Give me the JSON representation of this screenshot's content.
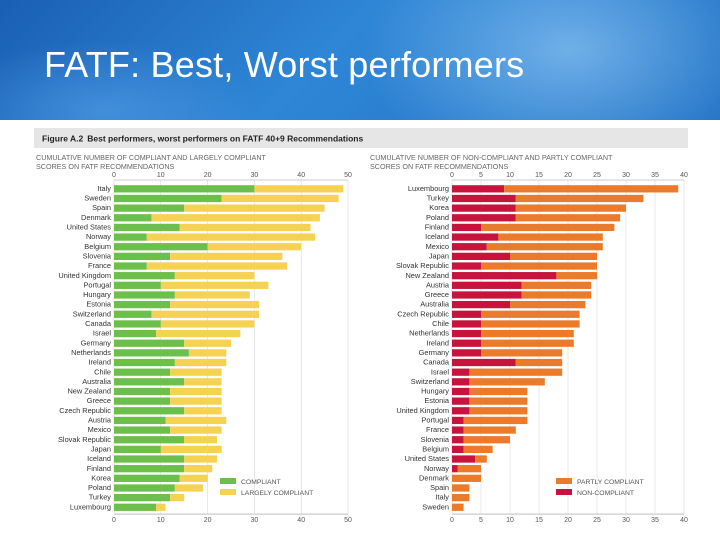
{
  "slide": {
    "title": "FATF: Best, Worst performers"
  },
  "colors": {
    "green": "#6cbf4a",
    "yellow": "#f6d253",
    "red": "#c8143c",
    "orange": "#ec7a2b",
    "header_bg": "#e6e6e6"
  },
  "chart_data": [
    {
      "type": "bar",
      "stacked": true,
      "orientation": "horizontal",
      "figure_title": "Figure A.2",
      "figure_subtitle": "Best performers, worst performers on FATF 40+9 Recommendations",
      "title": "CUMULATIVE NUMBER OF COMPLIANT AND LARGELY COMPLIANT SCORES ON FATF RECOMMENDATIONS",
      "xlim": [
        0,
        50
      ],
      "ticks": [
        0,
        10,
        20,
        30,
        40,
        50
      ],
      "categories": [
        "Italy",
        "Sweden",
        "Spain",
        "Denmark",
        "United States",
        "Norway",
        "Belgium",
        "Slovenia",
        "France",
        "United Kingdom",
        "Portugal",
        "Hungary",
        "Estonia",
        "Switzerland",
        "Canada",
        "Israel",
        "Germany",
        "Netherlands",
        "Ireland",
        "Chile",
        "Australia",
        "New Zealand",
        "Greece",
        "Czech Republic",
        "Austria",
        "Mexico",
        "Slovak Republic",
        "Japan",
        "Iceland",
        "Finland",
        "Korea",
        "Poland",
        "Turkey",
        "Luxembourg"
      ],
      "series": [
        {
          "name": "COMPLIANT",
          "values": [
            30,
            23,
            15,
            8,
            14,
            7,
            20,
            12,
            7,
            13,
            10,
            13,
            12,
            8,
            10,
            9,
            15,
            16,
            13,
            12,
            15,
            12,
            12,
            15,
            11,
            12,
            15,
            10,
            15,
            15,
            14,
            13,
            12,
            9
          ]
        },
        {
          "name": "LARGELY COMPLIANT",
          "values": [
            19,
            25,
            30,
            36,
            28,
            36,
            20,
            24,
            30,
            17,
            23,
            16,
            19,
            23,
            20,
            18,
            10,
            8,
            11,
            11,
            8,
            11,
            11,
            8,
            13,
            11,
            7,
            13,
            7,
            6,
            6,
            6,
            3,
            2
          ]
        }
      ],
      "legend": [
        "COMPLIANT",
        "LARGELY COMPLIANT"
      ]
    },
    {
      "type": "bar",
      "stacked": true,
      "orientation": "horizontal",
      "title": "CUMULATIVE NUMBER OF NON-COMPLIANT AND PARTLY COMPLIANT SCORES ON FATF RECOMMENDATIONS",
      "xlim": [
        0,
        40
      ],
      "ticks": [
        0,
        5,
        10,
        15,
        20,
        25,
        30,
        35,
        40
      ],
      "categories": [
        "Luxembourg",
        "Turkey",
        "Korea",
        "Poland",
        "Finland",
        "Iceland",
        "Mexico",
        "Japan",
        "Slovak Republic",
        "New Zealand",
        "Austria",
        "Greece",
        "Australia",
        "Czech Republic",
        "Chile",
        "Netherlands",
        "Ireland",
        "Germany",
        "Canada",
        "Israel",
        "Switzerland",
        "Hungary",
        "Estonia",
        "United Kingdom",
        "Portugal",
        "France",
        "Slovenia",
        "Belgium",
        "United States",
        "Norway",
        "Denmark",
        "Spain",
        "Italy",
        "Sweden"
      ],
      "series": [
        {
          "name": "NON-COMPLIANT",
          "values": [
            9,
            11,
            11,
            11,
            5,
            8,
            6,
            10,
            5,
            18,
            12,
            12,
            10,
            5,
            5,
            5,
            5,
            5,
            11,
            3,
            3,
            3,
            3,
            3,
            2,
            2,
            2,
            2,
            4,
            1,
            0,
            0,
            0,
            0
          ]
        },
        {
          "name": "PARTLY COMPLIANT",
          "values": [
            30,
            22,
            19,
            18,
            23,
            18,
            20,
            15,
            20,
            7,
            12,
            12,
            13,
            17,
            17,
            16,
            16,
            14,
            8,
            16,
            13,
            10,
            10,
            10,
            11,
            9,
            8,
            5,
            2,
            4,
            5,
            3,
            3,
            2
          ]
        }
      ],
      "legend": [
        "PARTLY COMPLIANT",
        "NON-COMPLIANT"
      ]
    }
  ]
}
